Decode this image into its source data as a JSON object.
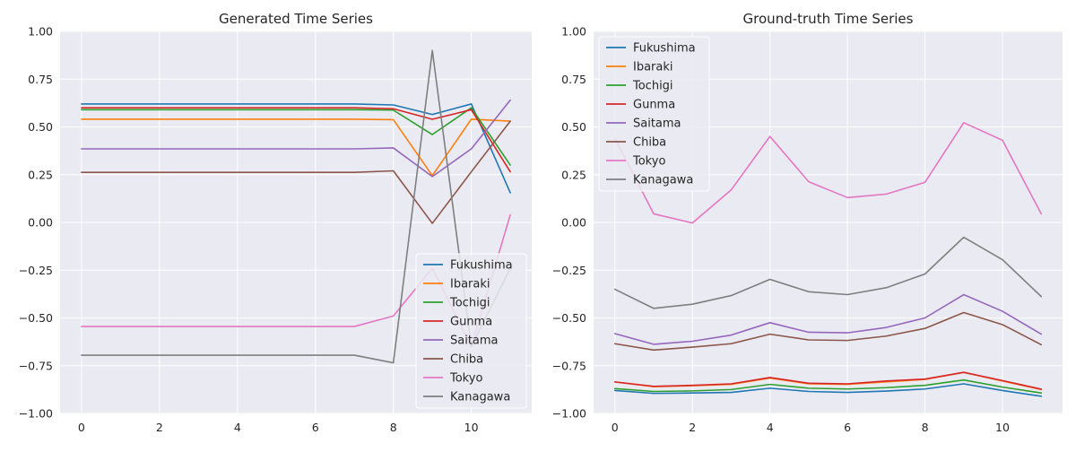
{
  "chart_data": [
    {
      "type": "line",
      "title": "Generated Time Series",
      "xlabel": "",
      "ylabel": "",
      "xlim": [
        -0.55,
        11.55
      ],
      "ylim": [
        -1.0,
        1.0
      ],
      "xticks": [
        "0",
        "2",
        "4",
        "6",
        "8",
        "10"
      ],
      "xtick_values": [
        0,
        2,
        4,
        6,
        8,
        10
      ],
      "yticks": [
        "−1.00",
        "−0.75",
        "−0.50",
        "−0.25",
        "0.00",
        "0.25",
        "0.50",
        "0.75",
        "1.00"
      ],
      "ytick_values": [
        -1.0,
        -0.75,
        -0.5,
        -0.25,
        0.0,
        0.25,
        0.5,
        0.75,
        1.0
      ],
      "grid": true,
      "legend_position": "bottom-right",
      "x": [
        0,
        1,
        2,
        3,
        4,
        5,
        6,
        7,
        8,
        9,
        10,
        11
      ],
      "series": [
        {
          "name": "Fukushima",
          "color": "#1f77b4",
          "values": [
            0.62,
            0.62,
            0.62,
            0.62,
            0.62,
            0.62,
            0.62,
            0.62,
            0.615,
            0.565,
            0.62,
            0.155
          ]
        },
        {
          "name": "Ibaraki",
          "color": "#ff7f0e",
          "values": [
            0.54,
            0.54,
            0.54,
            0.54,
            0.54,
            0.54,
            0.54,
            0.54,
            0.538,
            0.245,
            0.54,
            0.53
          ]
        },
        {
          "name": "Tochigi",
          "color": "#2ca02c",
          "values": [
            0.59,
            0.59,
            0.59,
            0.59,
            0.59,
            0.59,
            0.59,
            0.59,
            0.588,
            0.46,
            0.6,
            0.3
          ]
        },
        {
          "name": "Gunma",
          "color": "#d62728",
          "values": [
            0.6,
            0.6,
            0.6,
            0.6,
            0.6,
            0.6,
            0.6,
            0.6,
            0.595,
            0.54,
            0.59,
            0.265
          ]
        },
        {
          "name": "Saitama",
          "color": "#9467bd",
          "values": [
            0.385,
            0.385,
            0.385,
            0.385,
            0.385,
            0.385,
            0.385,
            0.385,
            0.39,
            0.24,
            0.385,
            0.64
          ]
        },
        {
          "name": "Chiba",
          "color": "#8c564b",
          "values": [
            0.262,
            0.262,
            0.262,
            0.262,
            0.262,
            0.262,
            0.262,
            0.262,
            0.27,
            -0.005,
            0.265,
            0.53
          ]
        },
        {
          "name": "Tokyo",
          "color": "#e377c2",
          "values": [
            -0.545,
            -0.545,
            -0.545,
            -0.545,
            -0.545,
            -0.545,
            -0.545,
            -0.545,
            -0.49,
            -0.24,
            -0.65,
            0.04
          ]
        },
        {
          "name": "Kanagawa",
          "color": "#7f7f7f",
          "values": [
            -0.695,
            -0.695,
            -0.695,
            -0.695,
            -0.695,
            -0.695,
            -0.695,
            -0.695,
            -0.735,
            0.9,
            -0.65,
            -0.24
          ]
        }
      ]
    },
    {
      "type": "line",
      "title": "Ground-truth Time Series",
      "xlabel": "",
      "ylabel": "",
      "xlim": [
        -0.55,
        11.55
      ],
      "ylim": [
        -1.0,
        1.0
      ],
      "xticks": [
        "0",
        "2",
        "4",
        "6",
        "8",
        "10"
      ],
      "xtick_values": [
        0,
        2,
        4,
        6,
        8,
        10
      ],
      "yticks": [
        "−1.00",
        "−0.75",
        "−0.50",
        "−0.25",
        "0.00",
        "0.25",
        "0.50",
        "0.75",
        "1.00"
      ],
      "ytick_values": [
        -1.0,
        -0.75,
        -0.5,
        -0.25,
        0.0,
        0.25,
        0.5,
        0.75,
        1.0
      ],
      "grid": true,
      "legend_position": "top-left",
      "x": [
        0,
        1,
        2,
        3,
        4,
        5,
        6,
        7,
        8,
        9,
        10,
        11
      ],
      "series": [
        {
          "name": "Fukushima",
          "color": "#1f77b4",
          "values": [
            -0.88,
            -0.895,
            -0.893,
            -0.89,
            -0.868,
            -0.885,
            -0.89,
            -0.883,
            -0.872,
            -0.845,
            -0.88,
            -0.91
          ]
        },
        {
          "name": "Ibaraki",
          "color": "#ff7f0e",
          "values": [
            -0.835,
            -0.86,
            -0.855,
            -0.848,
            -0.815,
            -0.845,
            -0.848,
            -0.835,
            -0.822,
            -0.785,
            -0.83,
            -0.875
          ]
        },
        {
          "name": "Tochigi",
          "color": "#2ca02c",
          "values": [
            -0.87,
            -0.885,
            -0.882,
            -0.875,
            -0.848,
            -0.868,
            -0.872,
            -0.865,
            -0.853,
            -0.825,
            -0.862,
            -0.893
          ]
        },
        {
          "name": "Gunma",
          "color": "#d62728",
          "values": [
            -0.835,
            -0.858,
            -0.853,
            -0.845,
            -0.812,
            -0.842,
            -0.845,
            -0.83,
            -0.82,
            -0.785,
            -0.828,
            -0.873
          ]
        },
        {
          "name": "Saitama",
          "color": "#9467bd",
          "values": [
            -0.582,
            -0.638,
            -0.622,
            -0.59,
            -0.525,
            -0.575,
            -0.578,
            -0.55,
            -0.5,
            -0.378,
            -0.465,
            -0.585
          ]
        },
        {
          "name": "Chiba",
          "color": "#8c564b",
          "values": [
            -0.635,
            -0.668,
            -0.653,
            -0.635,
            -0.585,
            -0.615,
            -0.618,
            -0.595,
            -0.555,
            -0.472,
            -0.535,
            -0.64
          ]
        },
        {
          "name": "Tokyo",
          "color": "#e377c2",
          "values": [
            0.44,
            0.045,
            -0.003,
            0.17,
            0.45,
            0.213,
            0.13,
            0.148,
            0.21,
            0.522,
            0.43,
            0.045
          ]
        },
        {
          "name": "Kanagawa",
          "color": "#7f7f7f",
          "values": [
            -0.35,
            -0.45,
            -0.428,
            -0.383,
            -0.298,
            -0.363,
            -0.378,
            -0.342,
            -0.27,
            -0.078,
            -0.195,
            -0.388
          ]
        }
      ]
    }
  ]
}
